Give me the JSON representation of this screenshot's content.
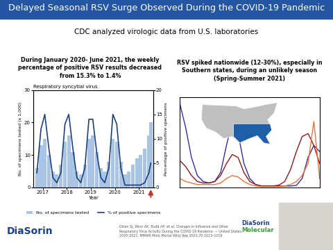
{
  "slide": {
    "title": "Delayed Seasonal RSV Surge Observed During the COVID-19 Pandemic",
    "subtitle": "CDC analyzed virologic data from U.S. laboratories",
    "left_text": "During January 2020- June 2021, the weekly percentage of positive RSV results decreased from 15.3% to 1.4%",
    "right_text": "RSV spiked nationwide (12-30%), especially in Southern states, during an unlikely season (Spring-Summer 2021)",
    "citation": "Olsen SJ, Winn AK, Budd AP, et al. Changes in Influenza and Other Respiratory Virus Activity During the COVID-19 Pandemic — United States, 2020–2021. MMWR Morb Mortal Wkly Rep 2021;70:1013–1019.",
    "logo_left": "DiaSorin",
    "logo_right": [
      "DiaSorin",
      "Molecular"
    ]
  },
  "chart_data": [
    {
      "type": "combo",
      "title": "Respiratory syncytial virus",
      "x_label": "Year",
      "y_label": "No. of specimens tested (x 1,000)",
      "y2_label": "Percentage of positive specimens",
      "x": [
        2016.75,
        2016.92,
        2017.08,
        2017.25,
        2017.42,
        2017.58,
        2017.75,
        2017.92,
        2018.08,
        2018.25,
        2018.42,
        2018.58,
        2018.75,
        2018.92,
        2019.08,
        2019.25,
        2019.42,
        2019.58,
        2019.75,
        2019.92,
        2020.08,
        2020.25,
        2020.42,
        2020.58,
        2020.75,
        2020.92,
        2021.08,
        2021.25,
        2021.42,
        2021.5
      ],
      "xlim": [
        2016.6,
        2021.6
      ],
      "xticks": [
        2017,
        2018,
        2019,
        2020,
        2021
      ],
      "ylim": [
        0,
        30
      ],
      "yticks": [
        0,
        10,
        20,
        30
      ],
      "y2lim": [
        0,
        20
      ],
      "y2ticks": [
        0,
        5,
        10,
        15,
        20
      ],
      "legend": "upper center",
      "series": [
        {
          "name": "No. of specimens tested",
          "type": "bar",
          "color": "#a9c4e4",
          "values": [
            6,
            13,
            15,
            10,
            5,
            4,
            7,
            14,
            16,
            11,
            5,
            4,
            7,
            15,
            16,
            11,
            6,
            5,
            8,
            15,
            14,
            8,
            4,
            5,
            7,
            9,
            10,
            12,
            16,
            20
          ]
        },
        {
          "name": "% of positive specimens",
          "type": "line",
          "axis": "y2",
          "color": "#1b3f7a",
          "values": [
            3,
            12,
            15,
            8,
            2,
            1,
            3,
            13,
            15,
            8,
            2,
            1,
            4,
            14,
            14,
            7,
            2,
            1,
            4,
            15,
            13,
            4,
            0.5,
            0.5,
            0.5,
            0.5,
            0.5,
            1,
            3,
            5
          ]
        }
      ]
    },
    {
      "type": "line",
      "tick_labels": false,
      "x": [
        0,
        1,
        2,
        3,
        4,
        5,
        6,
        7,
        8,
        9,
        10,
        11,
        12,
        13,
        14,
        15,
        16,
        17,
        18,
        19,
        20,
        21,
        22,
        23,
        24
      ],
      "xlim": [
        0,
        24
      ],
      "ylim": [
        0,
        30
      ],
      "series": [
        {
          "color": "#3b2a9c",
          "values": [
            28,
            20,
            10,
            4,
            2,
            1.5,
            2,
            5,
            14,
            22,
            18,
            8,
            3,
            1,
            0.5,
            0.5,
            0.5,
            0.5,
            0.5,
            0.5,
            0.7,
            3,
            10,
            14,
            12
          ]
        },
        {
          "color": "#8b1a1a",
          "values": [
            9,
            7,
            4,
            2,
            1.5,
            1.5,
            2,
            4,
            8,
            11,
            10,
            5,
            2,
            1,
            0.5,
            0.5,
            0.5,
            0.8,
            2,
            6,
            12,
            17,
            18,
            14,
            8
          ]
        },
        {
          "color": "#e8733a",
          "values": [
            3,
            2,
            1.5,
            1,
            1,
            1,
            1,
            1.5,
            3,
            4,
            3.5,
            2,
            1,
            0.5,
            0.3,
            0.3,
            0.3,
            0.3,
            0.5,
            1,
            2,
            4,
            8,
            22,
            3
          ]
        }
      ]
    }
  ]
}
